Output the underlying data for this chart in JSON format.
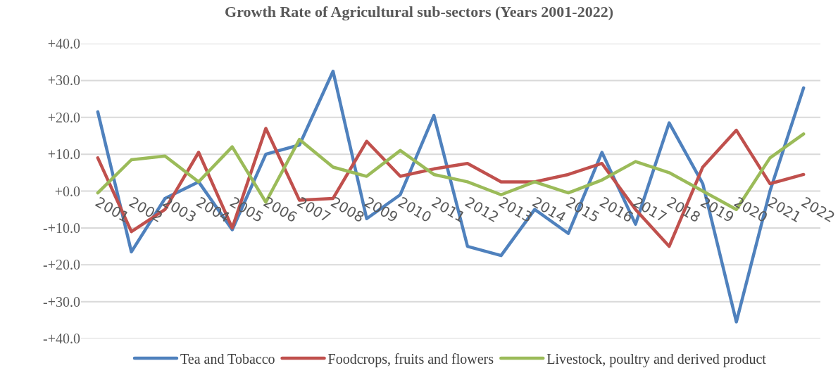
{
  "chart_data": {
    "type": "line",
    "title": "Growth Rate of Agricultural sub-sectors (Years 2001-2022)",
    "categories": [
      "2001",
      "2002",
      "2003",
      "2004",
      "2005",
      "2006",
      "2007",
      "2008",
      "2009",
      "2010",
      "2011",
      "2012",
      "2013",
      "2014",
      "2015",
      "2016",
      "2017",
      "2018",
      "2019",
      "2020",
      "2021",
      "2022"
    ],
    "series": [
      {
        "name": "Tea and Tobacco",
        "color": "#4f81bd",
        "values": [
          21.5,
          -16.5,
          -2,
          2.5,
          -10.5,
          10,
          12.5,
          32.5,
          -7.5,
          -1,
          20.5,
          -15,
          -17.5,
          -5,
          -11.5,
          10.5,
          -9,
          18.5,
          2,
          -35.5,
          0,
          28
        ]
      },
      {
        "name": "Foodcrops, fruits and flowers",
        "color": "#c0504d",
        "values": [
          9,
          -11,
          -5,
          10.5,
          -10,
          17,
          -2.5,
          -2,
          13.5,
          4,
          6,
          7.5,
          2.5,
          2.5,
          4.5,
          7.5,
          -5,
          -15,
          6.5,
          16.5,
          2,
          4.5
        ]
      },
      {
        "name": "Livestock, poultry and derived product",
        "color": "#9bbb59",
        "values": [
          -0.5,
          8.5,
          9.5,
          2.5,
          12,
          -3,
          14,
          6.5,
          4,
          11,
          4.5,
          2.5,
          -1,
          2.5,
          -0.5,
          3,
          8,
          5,
          0,
          -5,
          9,
          15.5
        ]
      }
    ],
    "ylim": [
      -40,
      40
    ],
    "yticks": [
      {
        "value": 40,
        "label": "+40.0"
      },
      {
        "value": 30,
        "label": "+30.0"
      },
      {
        "value": 20,
        "label": "+20.0"
      },
      {
        "value": 10,
        "label": "+10.0"
      },
      {
        "value": 0,
        "label": "+0.0"
      },
      {
        "value": -10,
        "label": "-+10.0"
      },
      {
        "value": -20,
        "label": "-+20.0"
      },
      {
        "value": -30,
        "label": "-+30.0"
      },
      {
        "value": -40,
        "label": "-+40.0"
      }
    ],
    "grid": "y",
    "legend": "bottom",
    "marker": "none",
    "line_style": "solid"
  }
}
